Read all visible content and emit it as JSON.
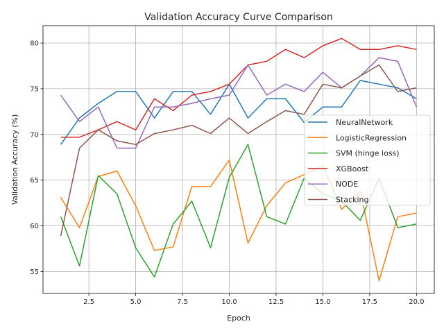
{
  "chart_data": {
    "type": "line",
    "title": "Validation Accuracy Curve Comparison",
    "xlabel": "Epoch",
    "ylabel": "Validation Accuracy (%)",
    "xlim": [
      0.05,
      20.95
    ],
    "ylim": [
      52.6,
      81.9
    ],
    "xticks": [
      2.5,
      5.0,
      7.5,
      10.0,
      12.5,
      15.0,
      17.5,
      20.0
    ],
    "xtick_labels": [
      "2.5",
      "5.0",
      "7.5",
      "10.0",
      "12.5",
      "15.0",
      "17.5",
      "20.0"
    ],
    "yticks": [
      55,
      60,
      65,
      70,
      75,
      80
    ],
    "ytick_labels": [
      "55",
      "60",
      "65",
      "70",
      "75",
      "80"
    ],
    "grid": true,
    "legend_position": "center-right",
    "x": [
      1,
      2,
      3,
      4,
      5,
      6,
      7,
      8,
      9,
      10,
      11,
      12,
      13,
      14,
      15,
      16,
      17,
      18,
      19,
      20
    ],
    "series": [
      {
        "name": "NeuralNetwork",
        "color": "#1f77b4",
        "values": [
          68.9,
          71.8,
          73.4,
          74.7,
          74.7,
          71.8,
          74.7,
          74.7,
          72.2,
          75.5,
          71.8,
          73.9,
          73.9,
          71.3,
          73.0,
          73.0,
          75.9,
          75.5,
          75.1,
          73.9
        ]
      },
      {
        "name": "LogisticRegression",
        "color": "#ff7f0e",
        "values": [
          63.1,
          59.8,
          65.4,
          66.0,
          62.2,
          57.3,
          57.7,
          64.3,
          64.3,
          67.2,
          58.1,
          62.2,
          64.7,
          65.6,
          66.6,
          61.8,
          63.8,
          54.0,
          61.0,
          61.4
        ]
      },
      {
        "name": "SVM (hinge loss)",
        "color": "#2ca02c",
        "values": [
          61.0,
          55.6,
          65.5,
          63.5,
          57.6,
          54.4,
          60.2,
          62.7,
          57.6,
          65.3,
          68.9,
          61.0,
          60.2,
          65.2,
          63.5,
          62.7,
          60.6,
          65.2,
          59.8,
          60.2
        ]
      },
      {
        "name": "XGBoost",
        "color": "#d62728",
        "values": [
          69.7,
          69.7,
          70.5,
          71.4,
          70.5,
          73.9,
          72.6,
          74.3,
          74.7,
          75.5,
          77.6,
          78.0,
          79.3,
          78.4,
          79.7,
          80.5,
          79.3,
          79.3,
          79.7,
          79.3
        ]
      },
      {
        "name": "NODE",
        "color": "#9467bd",
        "values": [
          74.3,
          71.4,
          73.0,
          68.5,
          68.5,
          73.0,
          73.0,
          73.4,
          73.9,
          74.3,
          77.6,
          74.3,
          75.5,
          74.7,
          76.8,
          75.1,
          76.4,
          78.4,
          78.0,
          73.0
        ]
      },
      {
        "name": "Stacking",
        "color": "#8c564b",
        "values": [
          58.9,
          68.5,
          70.5,
          69.3,
          68.9,
          70.1,
          70.5,
          71.0,
          70.1,
          71.8,
          70.1,
          71.4,
          72.6,
          72.2,
          75.5,
          75.1,
          76.4,
          77.6,
          74.7,
          75.1
        ]
      }
    ]
  }
}
